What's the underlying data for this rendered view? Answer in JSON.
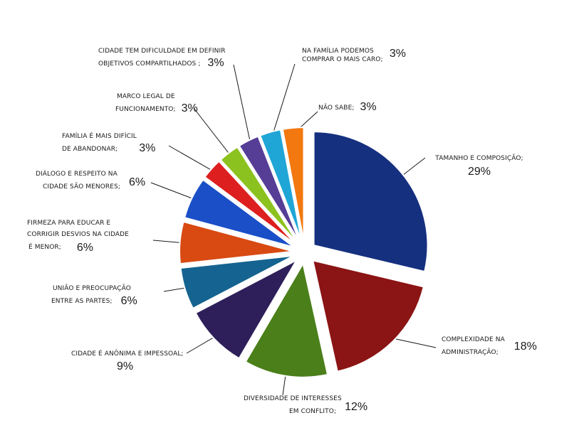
{
  "chart_data": {
    "type": "pie",
    "title": "",
    "slices": [
      {
        "key": "tamanho",
        "label_lines": [
          "TAMANHO  E COMPOSIÇÃO;"
        ],
        "value": 29,
        "value_text": "29%",
        "color": "#15307f",
        "exploded": true
      },
      {
        "key": "complexidade",
        "label_lines": [
          "COMPLEXIDADE NA",
          "ADMINISTRAÇÃO;"
        ],
        "value": 18,
        "value_text": "18%",
        "color": "#8b1414",
        "exploded": true
      },
      {
        "key": "diversidade",
        "label_lines": [
          "DIVERSIDADE DE INTERESSES",
          "EM CONFLITO;"
        ],
        "value": 12,
        "value_text": "12%",
        "color": "#4a7f1a",
        "exploded": true
      },
      {
        "key": "anonima",
        "label_lines": [
          "CIDADE É ANÔNIMA  E IMPESSOAL;"
        ],
        "value": 9,
        "value_text": "9%",
        "color": "#2e1f5a",
        "exploded": true
      },
      {
        "key": "uniao",
        "label_lines": [
          "UNIÃO E PREOCUPAÇÃO",
          "ENTRE AS  PARTES;"
        ],
        "value": 6,
        "value_text": "6%",
        "color": "#146390",
        "exploded": true
      },
      {
        "key": "firmeza",
        "label_lines": [
          "FIRMEZA PARA EDUCAR E",
          "CORRIGIR DESVIOS  NA CIDADE",
          "É  MENOR;"
        ],
        "value": 6,
        "value_text": "6%",
        "color": "#d84a12",
        "exploded": true
      },
      {
        "key": "dialogo",
        "label_lines": [
          "DIÁLOGO E RESPEITO  NA",
          "CIDADE  SÃO MENORES;"
        ],
        "value": 6,
        "value_text": "6%",
        "color": "#1b4fc8",
        "exploded": true
      },
      {
        "key": "familia_dificil",
        "label_lines": [
          "FAMÍLIA É MAIS DIFÍCIL",
          "DE    ABANDONAR;"
        ],
        "value": 3,
        "value_text": "3%",
        "color": "#dd1f1f",
        "exploded": true
      },
      {
        "key": "marco",
        "label_lines": [
          "MARCO LEGAL DE",
          "FUNCIONAMENTO;"
        ],
        "value": 3,
        "value_text": "3%",
        "color": "#8cc21f",
        "exploded": true
      },
      {
        "key": "cidade_dificuldade",
        "label_lines": [
          "CIDADE TEM DIFICULDADE EM DEFINIR",
          "OBJETIVOS  COMPARTILHADOS ;"
        ],
        "value": 3,
        "value_text": "3%",
        "color": "#563d96",
        "exploded": true
      },
      {
        "key": "familia_caro",
        "label_lines": [
          "NA FAMÍLIA  PODEMOS",
          "COMPRAR  O MAIS CARO;"
        ],
        "value": 3,
        "value_text": "3%",
        "color": "#1fa6d6",
        "exploded": true
      },
      {
        "key": "nao_sabe",
        "label_lines": [
          "NÃO SABE;"
        ],
        "value": 3,
        "value_text": "3%",
        "color": "#f2780f",
        "exploded": true
      }
    ]
  }
}
